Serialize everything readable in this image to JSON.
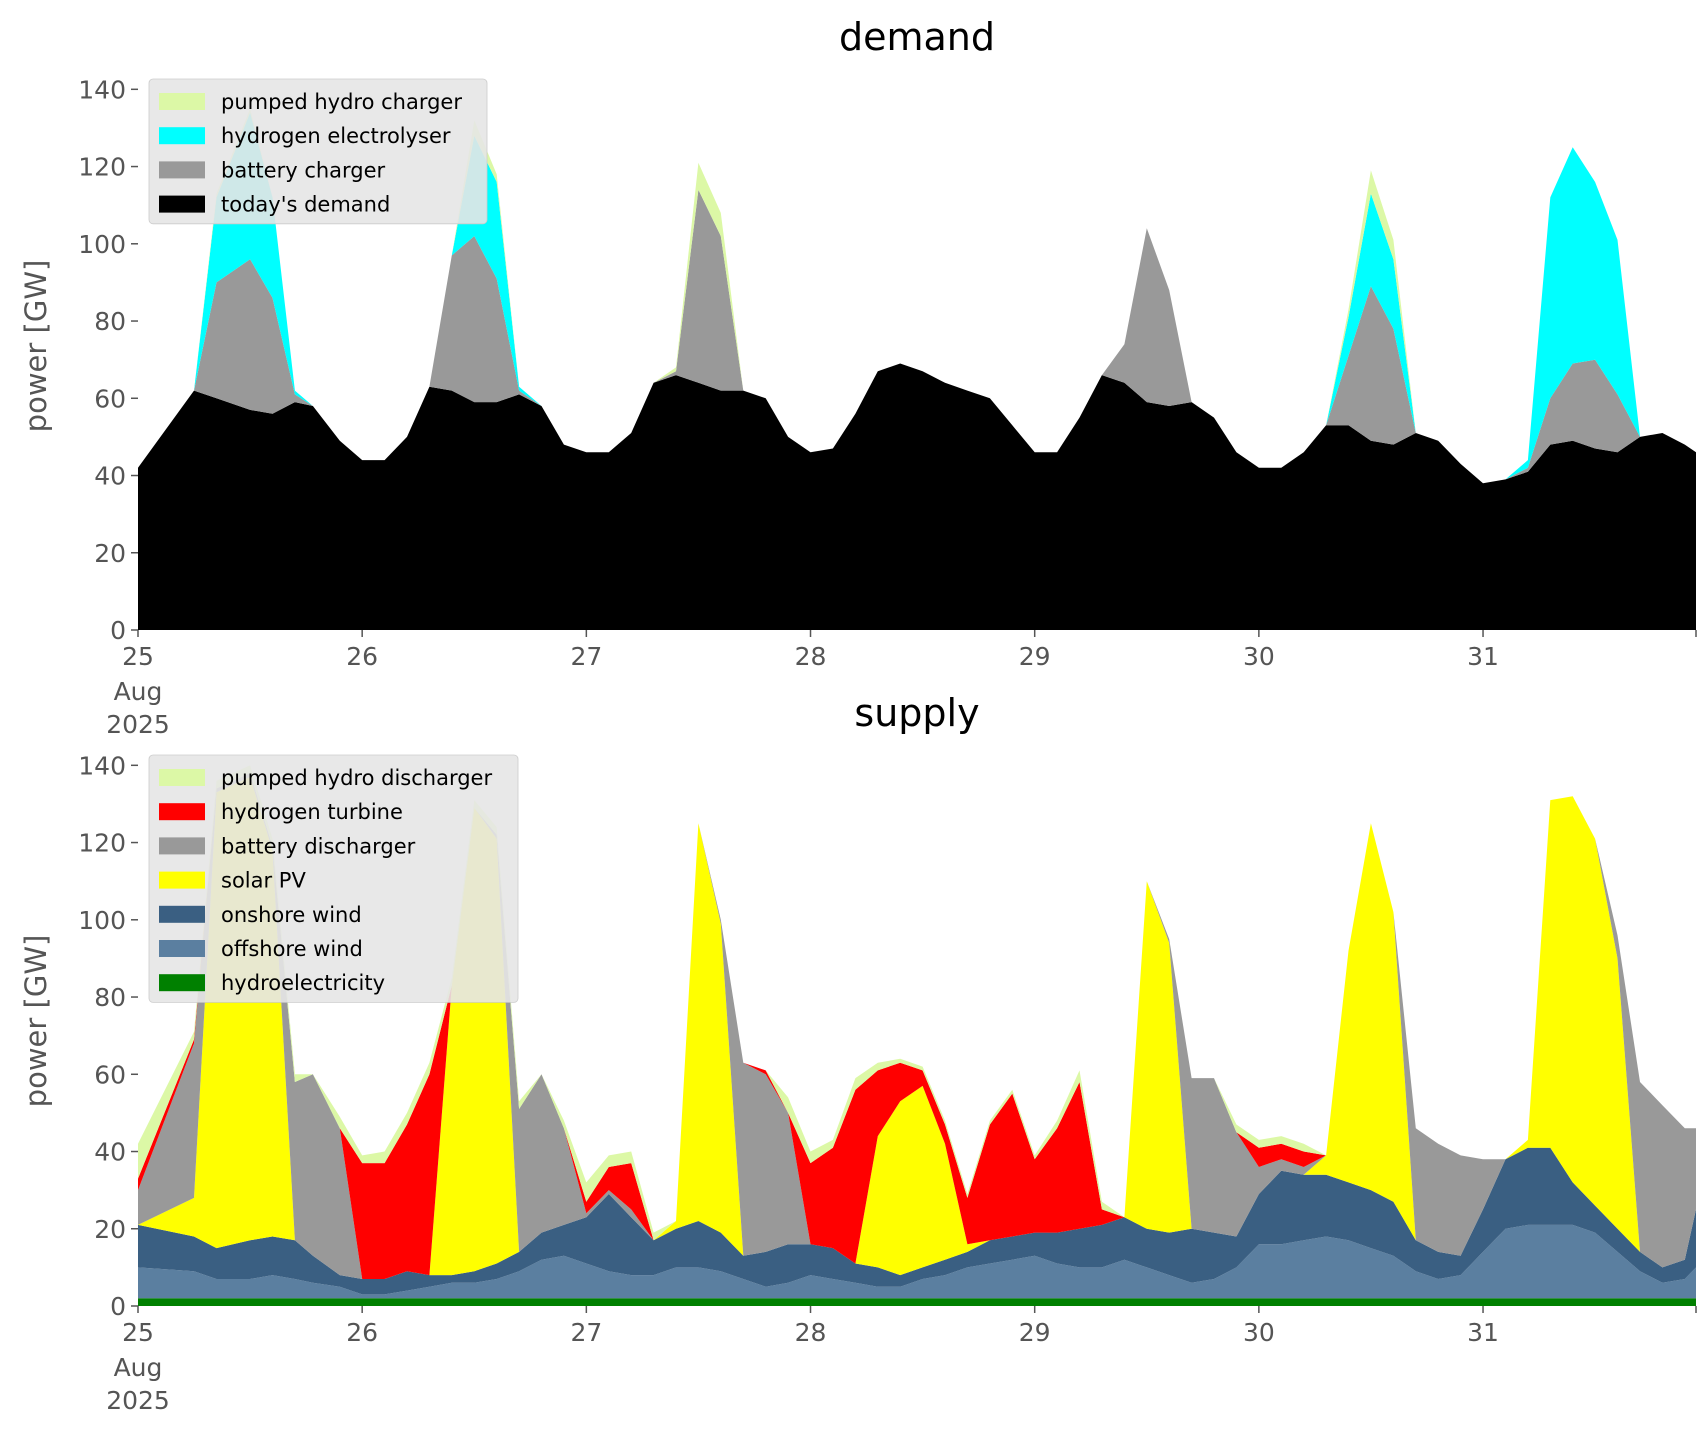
{
  "chart_data": [
    {
      "type": "area",
      "stacked": true,
      "title": "demand",
      "xlabel": "",
      "ylabel": "power [GW]",
      "ylim": [
        0,
        145
      ],
      "yticks": [
        0,
        20,
        40,
        60,
        80,
        100,
        120,
        140
      ],
      "xlim": [
        0,
        6.95
      ],
      "xticks": [
        0,
        1,
        2,
        3,
        4,
        5,
        6
      ],
      "xtick_labels": [
        "25",
        "26",
        "27",
        "28",
        "29",
        "30",
        "31"
      ],
      "xtick_sublabels": [
        "Aug",
        "2025"
      ],
      "grid": false,
      "legend_position": "top-left",
      "x": [
        0,
        0.25,
        0.35,
        0.5,
        0.6,
        0.7,
        0.78,
        0.9,
        1.0,
        1.1,
        1.2,
        1.3,
        1.4,
        1.5,
        1.6,
        1.7,
        1.8,
        1.9,
        2.0,
        2.1,
        2.2,
        2.3,
        2.4,
        2.5,
        2.6,
        2.7,
        2.8,
        2.9,
        3.0,
        3.1,
        3.2,
        3.3,
        3.4,
        3.5,
        3.6,
        3.7,
        3.8,
        3.9,
        4.0,
        4.1,
        4.2,
        4.3,
        4.4,
        4.5,
        4.6,
        4.7,
        4.8,
        4.9,
        5.0,
        5.1,
        5.2,
        5.3,
        5.4,
        5.5,
        5.6,
        5.7,
        5.8,
        5.9,
        6.0,
        6.1,
        6.2,
        6.3,
        6.4,
        6.5,
        6.6,
        6.7,
        6.8,
        6.9,
        6.95
      ],
      "series": [
        {
          "name": "today's demand",
          "color": "#000000",
          "values": [
            42,
            62,
            60,
            57,
            56,
            59,
            58,
            49,
            44,
            44,
            50,
            63,
            62,
            59,
            59,
            61,
            58,
            48,
            46,
            46,
            51,
            64,
            66,
            64,
            62,
            62,
            60,
            50,
            46,
            47,
            56,
            67,
            69,
            67,
            64,
            62,
            60,
            53,
            46,
            46,
            55,
            66,
            64,
            59,
            58,
            59,
            55,
            46,
            42,
            42,
            46,
            53,
            53,
            49,
            48,
            51,
            49,
            43,
            38,
            39,
            41,
            48,
            49,
            47,
            46,
            50,
            51,
            48,
            46
          ]
        },
        {
          "name": "battery charger",
          "color": "#999999",
          "values": [
            0,
            0,
            30,
            39,
            30,
            2,
            0,
            0,
            0,
            0,
            0,
            0,
            35,
            43,
            32,
            1,
            0,
            0,
            0,
            0,
            0,
            0,
            1,
            50,
            40,
            0,
            0,
            0,
            0,
            0,
            0,
            0,
            0,
            0,
            0,
            0,
            0,
            0,
            0,
            0,
            0,
            0,
            10,
            45,
            30,
            0,
            0,
            0,
            0,
            0,
            0,
            0,
            18,
            40,
            30,
            0,
            0,
            0,
            0,
            0,
            1,
            12,
            20,
            23,
            15,
            0,
            0,
            0,
            0
          ]
        },
        {
          "name": "hydrogen electrolyser",
          "color": "#00ffff",
          "values": [
            0,
            0,
            22,
            38,
            26,
            1,
            0,
            0,
            0,
            0,
            0,
            0,
            0,
            26,
            25,
            1,
            0,
            0,
            0,
            0,
            0,
            0,
            0,
            0,
            0,
            0,
            0,
            0,
            0,
            0,
            0,
            0,
            0,
            0,
            0,
            0,
            0,
            0,
            0,
            0,
            0,
            0,
            0,
            0,
            0,
            0,
            0,
            0,
            0,
            0,
            0,
            0,
            10,
            24,
            18,
            0,
            0,
            0,
            0,
            0,
            2,
            52,
            56,
            46,
            40,
            0,
            0,
            0,
            0
          ]
        },
        {
          "name": "pumped hydro charger",
          "color": "#dcf8a6",
          "values": [
            0,
            0,
            1,
            1,
            0,
            0,
            0,
            0,
            0,
            0,
            0,
            0,
            0,
            4,
            2,
            0,
            0,
            0,
            0,
            0,
            0,
            0,
            1,
            7,
            6,
            0,
            0,
            0,
            0,
            0,
            0,
            0,
            0,
            0,
            0,
            0,
            0,
            0,
            0,
            0,
            0,
            0,
            0,
            0,
            0,
            0,
            0,
            0,
            0,
            0,
            0,
            0,
            2,
            6,
            5,
            0,
            0,
            0,
            0,
            0,
            0,
            0,
            0,
            0,
            0,
            0,
            0,
            0,
            0
          ]
        }
      ],
      "legend": [
        "pumped hydro charger",
        "hydrogen electrolyser",
        "battery charger",
        "today's demand"
      ]
    },
    {
      "type": "area",
      "stacked": true,
      "title": "supply",
      "xlabel": "",
      "ylabel": "power [GW]",
      "ylim": [
        0,
        145
      ],
      "yticks": [
        0,
        20,
        40,
        60,
        80,
        100,
        120,
        140
      ],
      "xlim": [
        0,
        6.95
      ],
      "xticks": [
        0,
        1,
        2,
        3,
        4,
        5,
        6
      ],
      "xtick_labels": [
        "25",
        "26",
        "27",
        "28",
        "29",
        "30",
        "31"
      ],
      "xtick_sublabels": [
        "Aug",
        "2025"
      ],
      "grid": false,
      "legend_position": "top-left",
      "x": [
        0,
        0.25,
        0.35,
        0.5,
        0.6,
        0.7,
        0.78,
        0.9,
        1.0,
        1.1,
        1.2,
        1.3,
        1.4,
        1.5,
        1.6,
        1.7,
        1.8,
        1.9,
        2.0,
        2.1,
        2.2,
        2.3,
        2.4,
        2.5,
        2.6,
        2.7,
        2.8,
        2.9,
        3.0,
        3.1,
        3.2,
        3.3,
        3.4,
        3.5,
        3.6,
        3.7,
        3.8,
        3.9,
        4.0,
        4.1,
        4.2,
        4.3,
        4.4,
        4.5,
        4.6,
        4.7,
        4.8,
        4.9,
        5.0,
        5.1,
        5.2,
        5.3,
        5.4,
        5.5,
        5.6,
        5.7,
        5.8,
        5.9,
        6.0,
        6.1,
        6.2,
        6.3,
        6.4,
        6.5,
        6.6,
        6.7,
        6.8,
        6.9,
        6.95
      ],
      "series": [
        {
          "name": "hydroelectricity",
          "color": "#008000",
          "values": [
            2,
            2,
            2,
            2,
            2,
            2,
            2,
            2,
            2,
            2,
            2,
            2,
            2,
            2,
            2,
            2,
            2,
            2,
            2,
            2,
            2,
            2,
            2,
            2,
            2,
            2,
            2,
            2,
            2,
            2,
            2,
            2,
            2,
            2,
            2,
            2,
            2,
            2,
            2,
            2,
            2,
            2,
            2,
            2,
            2,
            2,
            2,
            2,
            2,
            2,
            2,
            2,
            2,
            2,
            2,
            2,
            2,
            2,
            2,
            2,
            2,
            2,
            2,
            2,
            2,
            2,
            2,
            2,
            2
          ]
        },
        {
          "name": "offshore wind",
          "color": "#5b7fa0",
          "values": [
            8,
            7,
            5,
            5,
            6,
            5,
            4,
            3,
            1,
            1,
            2,
            3,
            4,
            4,
            5,
            7,
            10,
            11,
            9,
            7,
            6,
            6,
            8,
            8,
            7,
            5,
            3,
            4,
            6,
            5,
            4,
            3,
            3,
            5,
            6,
            8,
            9,
            10,
            11,
            9,
            8,
            8,
            10,
            8,
            6,
            4,
            5,
            8,
            14,
            14,
            15,
            16,
            15,
            13,
            11,
            7,
            5,
            6,
            12,
            18,
            19,
            19,
            19,
            17,
            12,
            7,
            4,
            5,
            8
          ]
        },
        {
          "name": "onshore wind",
          "color": "#3a5f82",
          "values": [
            11,
            9,
            8,
            10,
            10,
            10,
            7,
            3,
            4,
            4,
            5,
            3,
            2,
            3,
            4,
            5,
            7,
            8,
            12,
            20,
            15,
            9,
            10,
            12,
            10,
            6,
            9,
            10,
            8,
            8,
            5,
            5,
            3,
            3,
            4,
            4,
            6,
            6,
            6,
            8,
            10,
            11,
            11,
            10,
            11,
            14,
            12,
            8,
            13,
            19,
            17,
            16,
            15,
            15,
            14,
            8,
            7,
            5,
            11,
            18,
            20,
            20,
            11,
            7,
            6,
            5,
            4,
            5,
            15
          ]
        },
        {
          "name": "solar PV",
          "color": "#ffff00",
          "values": [
            0,
            10,
            118,
            120,
            100,
            0,
            0,
            0,
            0,
            0,
            0,
            0,
            75,
            120,
            110,
            0,
            0,
            0,
            0,
            0,
            0,
            0,
            2,
            103,
            80,
            0,
            0,
            0,
            0,
            0,
            0,
            34,
            45,
            47,
            30,
            2,
            0,
            0,
            0,
            0,
            0,
            0,
            0,
            90,
            75,
            0,
            0,
            0,
            0,
            0,
            0,
            5,
            60,
            95,
            75,
            0,
            0,
            0,
            0,
            0,
            2,
            90,
            100,
            95,
            70,
            0,
            0,
            0,
            0
          ]
        },
        {
          "name": "battery discharger",
          "color": "#999999",
          "values": [
            9,
            40,
            1,
            1,
            1,
            41,
            47,
            38,
            0,
            0,
            0,
            0,
            0,
            0,
            1,
            37,
            41,
            25,
            1,
            1,
            2,
            0,
            0,
            0,
            1,
            50,
            46,
            34,
            0,
            0,
            0,
            0,
            0,
            0,
            0,
            0,
            0,
            0,
            0,
            0,
            0,
            0,
            0,
            0,
            1,
            39,
            40,
            27,
            7,
            3,
            2,
            0,
            0,
            0,
            0,
            29,
            28,
            26,
            13,
            0,
            0,
            0,
            0,
            0,
            6,
            44,
            42,
            34,
            21
          ]
        },
        {
          "name": "hydrogen turbine",
          "color": "#ff0000",
          "values": [
            3,
            1,
            0,
            0,
            0,
            0,
            0,
            0,
            30,
            30,
            38,
            52,
            0,
            0,
            0,
            0,
            0,
            0,
            3,
            6,
            12,
            0,
            0,
            0,
            0,
            0,
            1,
            0,
            21,
            26,
            45,
            17,
            10,
            4,
            5,
            12,
            30,
            37,
            19,
            27,
            38,
            4,
            0,
            0,
            0,
            0,
            0,
            0,
            5,
            4,
            4,
            0,
            0,
            0,
            0,
            0,
            0,
            0,
            0,
            0,
            0,
            0,
            0,
            0,
            0,
            0,
            0,
            0,
            0
          ]
        },
        {
          "name": "pumped hydro discharger",
          "color": "#dcf8a6",
          "values": [
            9,
            2,
            2,
            2,
            2,
            2,
            0,
            3,
            2,
            3,
            3,
            3,
            2,
            2,
            2,
            2,
            0,
            2,
            5,
            3,
            3,
            2,
            0,
            0,
            0,
            0,
            0,
            4,
            3,
            2,
            3,
            2,
            1,
            1,
            1,
            1,
            1,
            1,
            1,
            2,
            3,
            2,
            0,
            0,
            0,
            0,
            0,
            2,
            2,
            2,
            2,
            0,
            0,
            0,
            0,
            0,
            0,
            0,
            0,
            0,
            0,
            0,
            0,
            0,
            0,
            0,
            0,
            0,
            0
          ]
        }
      ],
      "legend": [
        "pumped hydro discharger",
        "hydrogen turbine",
        "battery discharger",
        "solar PV",
        "onshore wind",
        "offshore wind",
        "hydroelectricity"
      ]
    }
  ]
}
